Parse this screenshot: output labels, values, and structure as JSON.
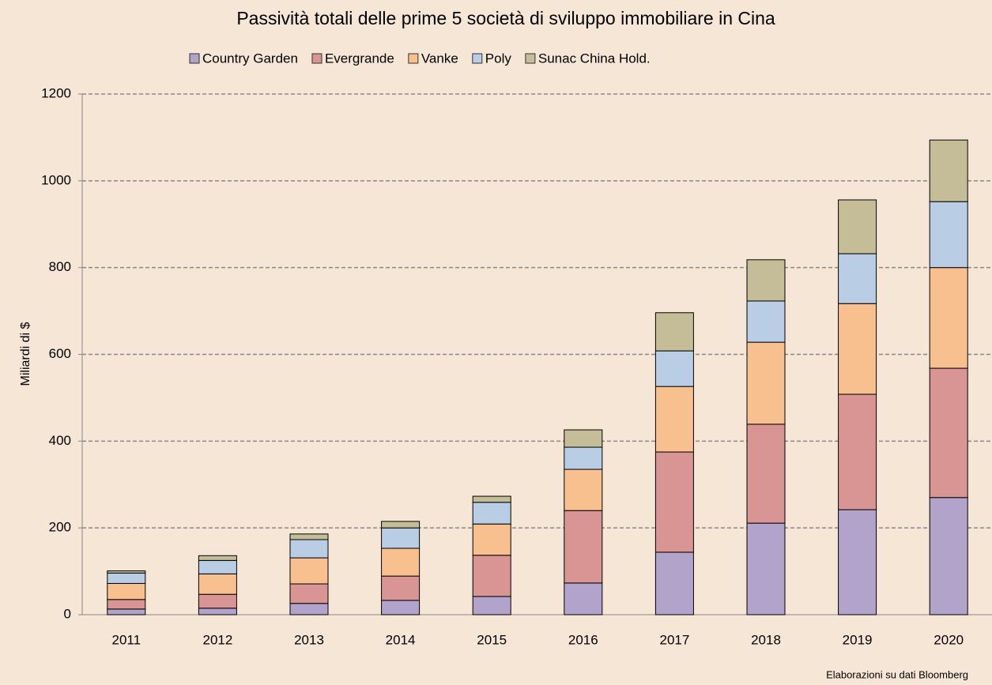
{
  "chart_data": {
    "type": "stacked_bar",
    "title": "Passività totali delle prime 5 società di sviluppo immobiliare in Cina",
    "y_label": "Miliardi di $",
    "source": "Elaborazioni su dati Bloomberg",
    "categories": [
      "2011",
      "2012",
      "2013",
      "2014",
      "2015",
      "2016",
      "2017",
      "2018",
      "2019",
      "2020"
    ],
    "series": [
      {
        "name": "Country Garden",
        "color": "#b1a3c9",
        "values": [
          13,
          15,
          26,
          33,
          42,
          73,
          144,
          211,
          242,
          270
        ]
      },
      {
        "name": "Evergrande",
        "color": "#d99594",
        "values": [
          22,
          32,
          45,
          56,
          95,
          167,
          231,
          228,
          266,
          298
        ]
      },
      {
        "name": "Vanke",
        "color": "#f9c08f",
        "values": [
          37,
          47,
          60,
          64,
          72,
          95,
          151,
          189,
          209,
          232
        ]
      },
      {
        "name": "Poly",
        "color": "#b9cde5",
        "values": [
          24,
          31,
          42,
          47,
          50,
          51,
          82,
          95,
          115,
          152
        ]
      },
      {
        "name": "Sunac China Hold.",
        "color": "#c4bd97",
        "values": [
          5,
          11,
          13,
          15,
          14,
          40,
          88,
          95,
          124,
          142
        ]
      }
    ],
    "ylim": [
      0,
      1200
    ],
    "yticks": [
      0,
      200,
      400,
      600,
      800,
      1000,
      1200
    ],
    "grid": true
  }
}
